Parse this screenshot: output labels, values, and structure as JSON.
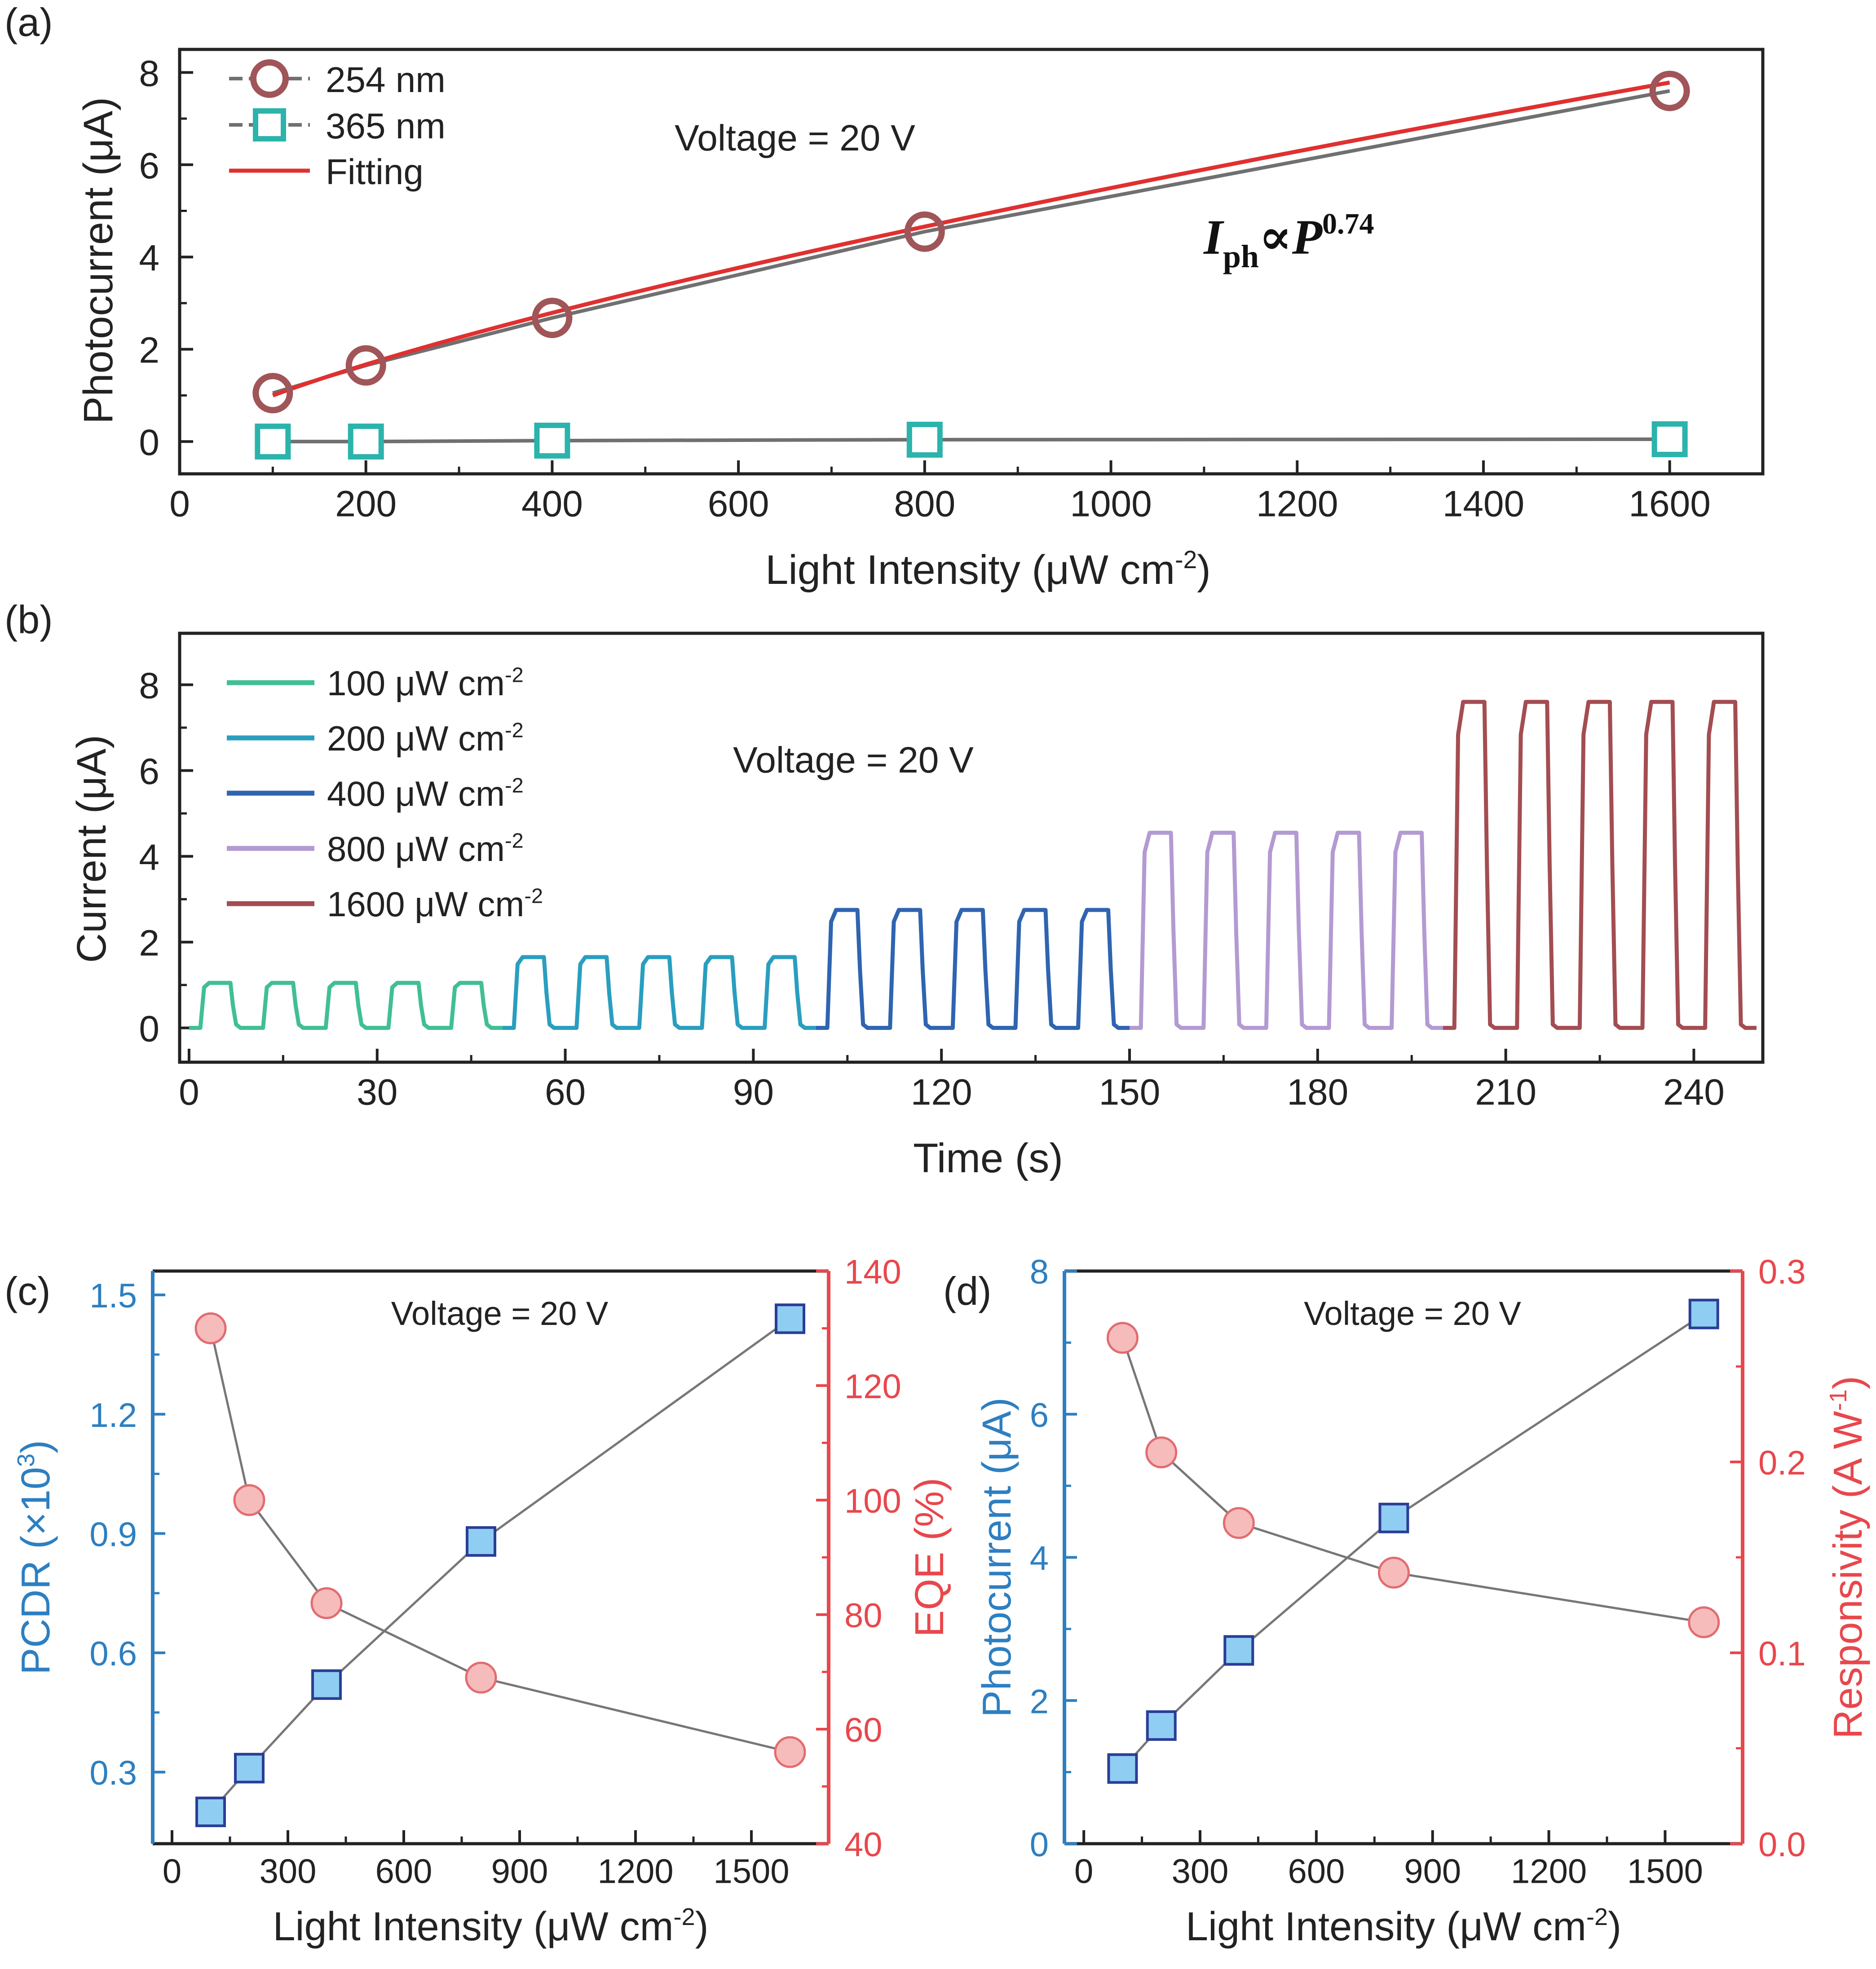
{
  "chart_data": [
    {
      "id": "a",
      "panel_label": "(a)",
      "type": "line",
      "xlabel": "Light Intensity (μW cm",
      "xlabel_sup": "-2",
      "xlabel_end": ")",
      "ylabel": "Photocurrent (μA)",
      "xlim": [
        0,
        1700
      ],
      "ylim": [
        -0.7,
        8.5
      ],
      "xticks": [
        0,
        200,
        400,
        600,
        800,
        1000,
        1200,
        1400,
        1600
      ],
      "yticks": [
        0,
        2,
        4,
        6,
        8
      ],
      "annotation": "Voltage = 20 V",
      "formula": {
        "main": "I",
        "sub": "ph",
        "mid": "∝P",
        "sup": "0.74"
      },
      "legend_position": "top-left",
      "series": [
        {
          "name": "254 nm",
          "marker": "circle",
          "color": "#a05558",
          "x": [
            100,
            200,
            400,
            800,
            1600
          ],
          "y": [
            1.05,
            1.65,
            2.68,
            4.55,
            7.6
          ]
        },
        {
          "name": "365 nm",
          "marker": "square",
          "color": "#2bb3ac",
          "x": [
            100,
            200,
            400,
            800,
            1600
          ],
          "y": [
            0.0,
            0.0,
            0.02,
            0.04,
            0.05
          ]
        },
        {
          "name": "Fitting",
          "marker": "none",
          "color": "#e03030",
          "x": [
            100,
            200,
            400,
            800,
            1600
          ],
          "y": [
            1.0,
            1.67,
            2.78,
            4.6,
            7.6
          ]
        }
      ]
    },
    {
      "id": "b",
      "panel_label": "(b)",
      "type": "line",
      "xlabel": "Time (s)",
      "ylabel": "Current (μA)",
      "xlim": [
        -1.5,
        251
      ],
      "ylim": [
        -0.8,
        9.2
      ],
      "xticks": [
        0,
        30,
        60,
        90,
        120,
        150,
        180,
        210,
        240
      ],
      "yticks": [
        0,
        2,
        4,
        6,
        8
      ],
      "annotation": "Voltage = 20 V",
      "legend_position": "top-left",
      "period_s": 10,
      "cycles_per_segment": 5,
      "series": [
        {
          "name": "100 μW cm",
          "sup": "-2",
          "color": "#41bf94",
          "t_start": 0,
          "t_end": 50,
          "on_current": 1.05
        },
        {
          "name": "200 μW cm",
          "sup": "-2",
          "color": "#2a9ebf",
          "t_start": 50,
          "t_end": 100,
          "on_current": 1.65
        },
        {
          "name": "400 μW cm",
          "sup": "-2",
          "color": "#2f64b0",
          "t_start": 100,
          "t_end": 150,
          "on_current": 2.75
        },
        {
          "name": "800 μW cm",
          "sup": "-2",
          "color": "#b49ad2",
          "t_start": 150,
          "t_end": 200,
          "on_current": 4.55
        },
        {
          "name": "1600 μW cm",
          "sup": "-2",
          "color": "#a34d52",
          "t_start": 200,
          "t_end": 250,
          "on_current": 7.6
        }
      ]
    },
    {
      "id": "c",
      "panel_label": "(c)",
      "type": "scatter",
      "xlabel": "Light Intensity (μW cm",
      "xlabel_sup": "-2",
      "xlabel_end": ")",
      "ylabel_left": "PCDR (×10",
      "ylabel_left_sup": "3",
      "ylabel_left_end": ")",
      "ylabel_right": "EQE (%)",
      "xlim": [
        -50,
        1700
      ],
      "ylim_left": [
        0.12,
        1.56
      ],
      "ylim_right": [
        40,
        140
      ],
      "xticks": [
        0,
        300,
        600,
        900,
        1200,
        1500
      ],
      "yticks_left": [
        "0.3",
        "0.6",
        "0.9",
        "1.2",
        "1.5"
      ],
      "yticks_right": [
        40,
        60,
        80,
        100,
        120,
        140
      ],
      "annotation": "Voltage = 20 V",
      "series": [
        {
          "name": "PCDR",
          "axis": "left",
          "marker": "square",
          "color": "#2d7fc1",
          "x": [
            100,
            200,
            400,
            800,
            1600
          ],
          "y": [
            0.2,
            0.31,
            0.52,
            0.88,
            1.44
          ]
        },
        {
          "name": "EQE",
          "axis": "right",
          "marker": "circle",
          "color": "#e8474c",
          "x": [
            100,
            200,
            400,
            800,
            1600
          ],
          "y": [
            130,
            100,
            82,
            69,
            56
          ]
        }
      ]
    },
    {
      "id": "d",
      "panel_label": "(d)",
      "type": "scatter",
      "xlabel": "Light Intensity (μW cm",
      "xlabel_sup": "-2",
      "xlabel_end": ")",
      "ylabel_left": "Photocurrent (μA)",
      "ylabel_right": "Responsivity (A W",
      "ylabel_right_sup": "-1",
      "ylabel_right_end": ")",
      "xlim": [
        -50,
        1700
      ],
      "ylim_left": [
        0,
        8
      ],
      "ylim_right": [
        0,
        0.3
      ],
      "xticks": [
        0,
        300,
        600,
        900,
        1200,
        1500
      ],
      "yticks_left": [
        0,
        2,
        4,
        6,
        8
      ],
      "yticks_right": [
        "0.0",
        "0.1",
        "0.2",
        "0.3"
      ],
      "annotation": "Voltage = 20 V",
      "series": [
        {
          "name": "Photocurrent",
          "axis": "left",
          "marker": "square",
          "color": "#2d7fc1",
          "x": [
            100,
            200,
            400,
            800,
            1600
          ],
          "y": [
            1.05,
            1.65,
            2.7,
            4.55,
            7.4
          ]
        },
        {
          "name": "Responsivity",
          "axis": "right",
          "marker": "circle",
          "color": "#e8474c",
          "x": [
            100,
            200,
            400,
            800,
            1600
          ],
          "y": [
            0.265,
            0.205,
            0.168,
            0.142,
            0.116
          ]
        }
      ]
    }
  ],
  "colors": {
    "axis": "#222222",
    "blue_axis": "#2d7fc1",
    "red_axis": "#e8474c",
    "connector": "#777777",
    "square_fill": "#8fcdf2",
    "square_stroke": "#2a3e96",
    "circle_fill": "#f6bcbc",
    "circle_stroke": "#e26c70",
    "open_circle": "#a05558",
    "open_square": "#2bb3ac",
    "grey_line": "#707070"
  }
}
